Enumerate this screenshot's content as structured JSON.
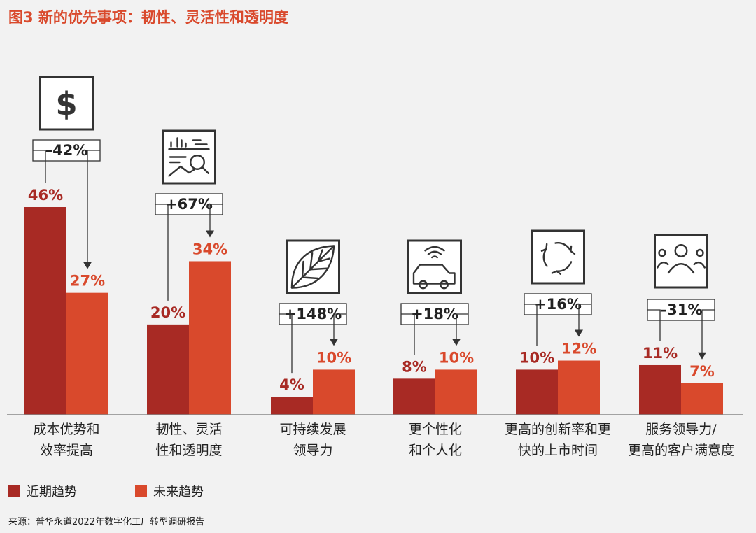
{
  "title": "图3 新的优先事项：韧性、灵活性和透明度",
  "colors": {
    "recent": "#a82a24",
    "future": "#d9492c",
    "title": "#d9492c"
  },
  "chart_data": {
    "type": "bar",
    "categories": [
      [
        "成本优势和",
        "效率提高"
      ],
      [
        "韧性、灵活",
        "性和透明度"
      ],
      [
        "可持续发展",
        "领导力"
      ],
      [
        "更个性化",
        "和个人化"
      ],
      [
        "更高的创新率和更",
        "快的上市时间"
      ],
      [
        "服务领导力/",
        "更高的客户满意度"
      ]
    ],
    "series": [
      {
        "name": "近期趋势",
        "values": [
          46,
          20,
          4,
          8,
          10,
          11
        ]
      },
      {
        "name": "未来趋势",
        "values": [
          27,
          34,
          10,
          10,
          12,
          7
        ]
      }
    ],
    "value_labels": {
      "recent": [
        "46%",
        "20%",
        "4%",
        "8%",
        "10%",
        "11%"
      ],
      "future": [
        "27%",
        "34%",
        "10%",
        "10%",
        "12%",
        "7%"
      ]
    },
    "changes": [
      "–42%",
      "+67%",
      "+148%",
      "+18%",
      "+16%",
      "–31%"
    ],
    "icons": [
      "dollar-icon",
      "analytics-icon",
      "leaf-icon",
      "connected-car-icon",
      "cycle-arrows-icon",
      "people-icon"
    ],
    "ylim": [
      0,
      46
    ]
  },
  "legend": [
    {
      "label": "近期趋势",
      "color": "#a82a24"
    },
    {
      "label": "未来趋势",
      "color": "#d9492c"
    }
  ],
  "source": "来源：普华永道2022年数字化工厂转型调研报告"
}
